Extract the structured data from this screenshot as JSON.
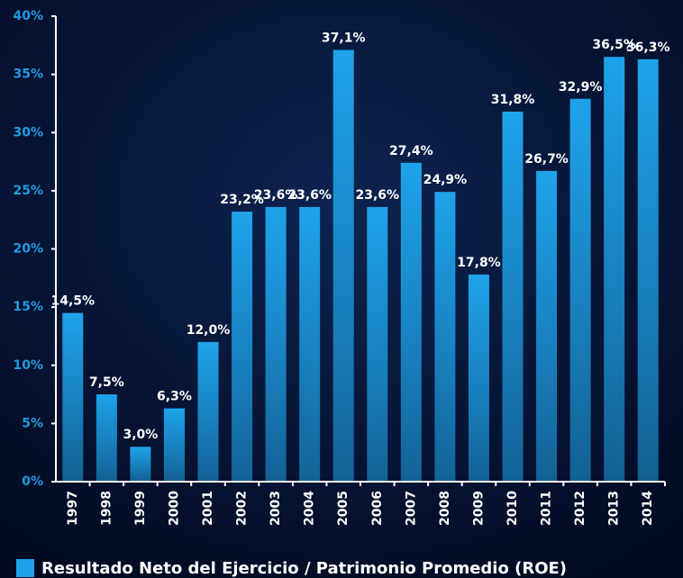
{
  "chart_data": {
    "type": "bar",
    "categories": [
      "1997",
      "1998",
      "1999",
      "2000",
      "2001",
      "2002",
      "2003",
      "2004",
      "2005",
      "2006",
      "2007",
      "2008",
      "2009",
      "2010",
      "2011",
      "2012",
      "2013",
      "2014"
    ],
    "series": [
      {
        "name": "Resultado Neto del Ejercicio / Patrimonio Promedio (ROE)",
        "color": "#1ea3ea",
        "values": [
          14.5,
          7.5,
          3.0,
          6.3,
          12.0,
          23.2,
          23.6,
          23.6,
          37.1,
          23.6,
          27.4,
          24.9,
          17.8,
          31.8,
          26.7,
          32.9,
          36.5,
          36.3
        ],
        "value_labels": [
          "14,5%",
          "7,5%",
          "3,0%",
          "6,3%",
          "12,0%",
          "23,2%",
          "23,6%",
          "23,6%",
          "37,1%",
          "23,6%",
          "27,4%",
          "24,9%",
          "17,8%",
          "31,8%",
          "26,7%",
          "32,9%",
          "36,5%",
          "36,3%"
        ]
      }
    ],
    "ylim": [
      0,
      40
    ],
    "yticks": [
      {
        "value": 0,
        "label": "0%"
      },
      {
        "value": 5,
        "label": "5%"
      },
      {
        "value": 10,
        "label": "10%"
      },
      {
        "value": 15,
        "label": "15%"
      },
      {
        "value": 20,
        "label": "20%"
      },
      {
        "value": 25,
        "label": "25%"
      },
      {
        "value": 30,
        "label": "30%"
      },
      {
        "value": 35,
        "label": "35%"
      },
      {
        "value": 40,
        "label": "40%"
      }
    ],
    "legend": "bottom-left"
  }
}
